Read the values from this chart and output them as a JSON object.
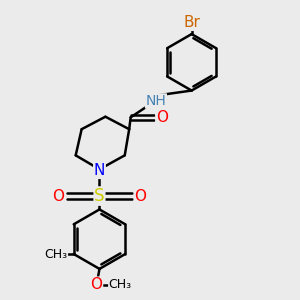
{
  "bg_color": "#ebebeb",
  "bond_color": "#000000",
  "bond_width": 1.8,
  "atom_colors": {
    "N_amide": "#4682B4",
    "N_pip": "#0000FF",
    "O_carbonyl": "#FF0000",
    "O_sulfonyl": "#FF0000",
    "O_methoxy": "#FF0000",
    "S": "#CCCC00",
    "Br": "#CC6600",
    "CH3": "#000000",
    "OCH3": "#FF0000"
  },
  "font_size": 10,
  "fig_size": [
    3.0,
    3.0
  ],
  "dpi": 100,
  "xlim": [
    0,
    10
  ],
  "ylim": [
    0,
    10
  ]
}
